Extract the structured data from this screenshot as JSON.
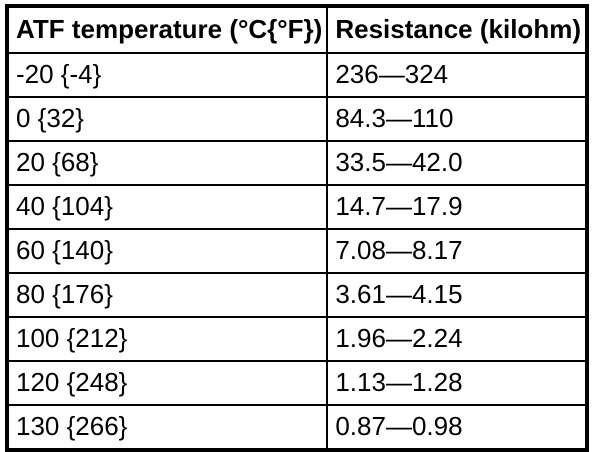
{
  "colors": {
    "background": "#ffffff",
    "border": "#000000",
    "text": "#000000"
  },
  "chart_data": {
    "type": "table",
    "title": "",
    "columns": [
      "ATF temperature (°C{°F})",
      "Resistance (kilohm)"
    ],
    "rows": [
      {
        "temperature": "-20 {-4}",
        "resistance": "236—324"
      },
      {
        "temperature": "0 {32}",
        "resistance": "84.3—110"
      },
      {
        "temperature": "20 {68}",
        "resistance": "33.5—42.0"
      },
      {
        "temperature": "40 {104}",
        "resistance": "14.7—17.9"
      },
      {
        "temperature": "60 {140}",
        "resistance": "7.08—8.17"
      },
      {
        "temperature": "80 {176}",
        "resistance": "3.61—4.15"
      },
      {
        "temperature": "100 {212}",
        "resistance": "1.96—2.24"
      },
      {
        "temperature": "120 {248}",
        "resistance": "1.13—1.28"
      },
      {
        "temperature": "130 {266}",
        "resistance": "0.87—0.98"
      }
    ]
  }
}
